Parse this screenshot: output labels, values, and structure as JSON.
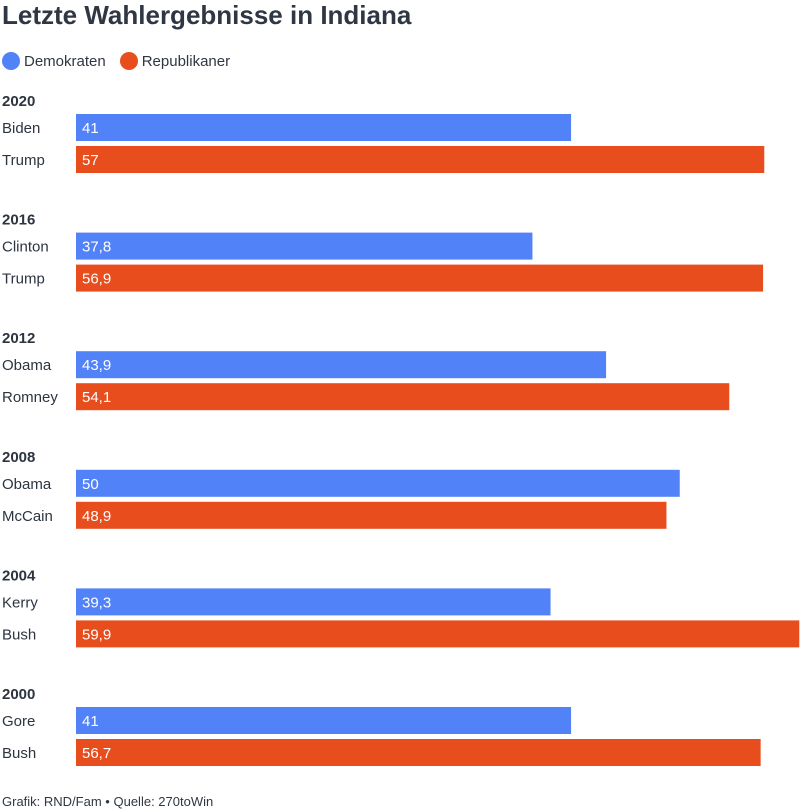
{
  "title": "Letzte Wahlergebnisse in Indiana",
  "legend": {
    "items": [
      {
        "label": "Demokraten",
        "color": "#5182f8"
      },
      {
        "label": "Republikaner",
        "color": "#e84e1d"
      }
    ]
  },
  "footer": {
    "credit": "Grafik: RND/Fam",
    "separator": "•",
    "source": "Quelle: 270toWin"
  },
  "chart_data": {
    "type": "bar",
    "orientation": "horizontal",
    "xlim": [
      0,
      60
    ],
    "grid": false,
    "legend_position": "top-left",
    "groups": [
      {
        "year": "2020",
        "bars": [
          {
            "candidate": "Biden",
            "party": "Demokraten",
            "value": 41,
            "label": "41"
          },
          {
            "candidate": "Trump",
            "party": "Republikaner",
            "value": 57,
            "label": "57"
          }
        ]
      },
      {
        "year": "2016",
        "bars": [
          {
            "candidate": "Clinton",
            "party": "Demokraten",
            "value": 37.8,
            "label": "37,8"
          },
          {
            "candidate": "Trump",
            "party": "Republikaner",
            "value": 56.9,
            "label": "56,9"
          }
        ]
      },
      {
        "year": "2012",
        "bars": [
          {
            "candidate": "Obama",
            "party": "Demokraten",
            "value": 43.9,
            "label": "43,9"
          },
          {
            "candidate": "Romney",
            "party": "Republikaner",
            "value": 54.1,
            "label": "54,1"
          }
        ]
      },
      {
        "year": "2008",
        "bars": [
          {
            "candidate": "Obama",
            "party": "Demokraten",
            "value": 50,
            "label": "50"
          },
          {
            "candidate": "McCain",
            "party": "Republikaner",
            "value": 48.9,
            "label": "48,9"
          }
        ]
      },
      {
        "year": "2004",
        "bars": [
          {
            "candidate": "Kerry",
            "party": "Demokraten",
            "value": 39.3,
            "label": "39,3"
          },
          {
            "candidate": "Bush",
            "party": "Republikaner",
            "value": 59.9,
            "label": "59,9"
          }
        ]
      },
      {
        "year": "2000",
        "bars": [
          {
            "candidate": "Gore",
            "party": "Demokraten",
            "value": 41,
            "label": "41"
          },
          {
            "candidate": "Bush",
            "party": "Republikaner",
            "value": 56.7,
            "label": "56,7"
          }
        ]
      }
    ]
  }
}
